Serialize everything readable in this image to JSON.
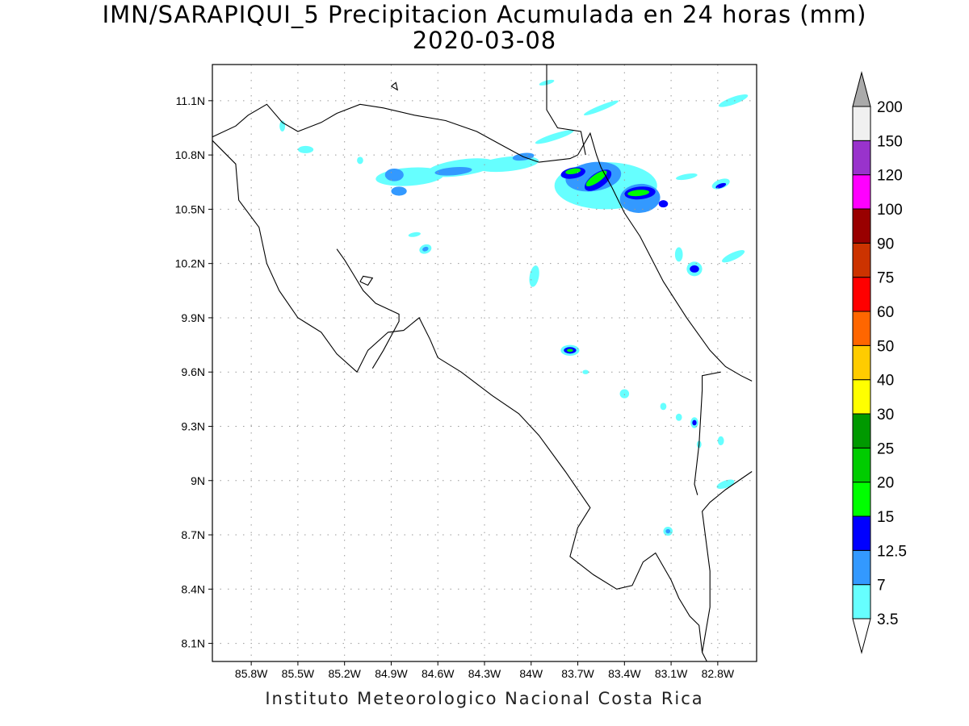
{
  "title": {
    "line1": "IMN/SARAPIQUI_5 Precipitacion Acumulada en 24 horas (mm)",
    "line2": "2020-03-08"
  },
  "footer": "Instituto Meteorologico Nacional Costa Rica",
  "map": {
    "lon_range": [
      -86.05,
      -82.55
    ],
    "lat_range": [
      8.0,
      11.3
    ],
    "grid": true,
    "lat_ticks": [
      {
        "value": 11.1,
        "label": "11.1N"
      },
      {
        "value": 10.8,
        "label": "10.8N"
      },
      {
        "value": 10.5,
        "label": "10.5N"
      },
      {
        "value": 10.2,
        "label": "10.2N"
      },
      {
        "value": 9.9,
        "label": "9.9N"
      },
      {
        "value": 9.6,
        "label": "9.6N"
      },
      {
        "value": 9.3,
        "label": "9.3N"
      },
      {
        "value": 9.0,
        "label": "9N"
      },
      {
        "value": 8.7,
        "label": "8.7N"
      },
      {
        "value": 8.4,
        "label": "8.4N"
      },
      {
        "value": 8.1,
        "label": "8.1N"
      }
    ],
    "lon_ticks": [
      {
        "value": -85.8,
        "label": "85.8W"
      },
      {
        "value": -85.5,
        "label": "85.5W"
      },
      {
        "value": -85.2,
        "label": "85.2W"
      },
      {
        "value": -84.9,
        "label": "84.9W"
      },
      {
        "value": -84.6,
        "label": "84.6W"
      },
      {
        "value": -84.3,
        "label": "84.3W"
      },
      {
        "value": -84.0,
        "label": "84W"
      },
      {
        "value": -83.7,
        "label": "83.7W"
      },
      {
        "value": -83.4,
        "label": "83.4W"
      },
      {
        "value": -83.1,
        "label": "83.1W"
      },
      {
        "value": -82.8,
        "label": "82.8W"
      }
    ]
  },
  "colorbar": {
    "orientation": "vertical",
    "labels": [
      "3.5",
      "7",
      "12.5",
      "15",
      "20",
      "25",
      "30",
      "40",
      "50",
      "60",
      "75",
      "90",
      "100",
      "120",
      "150",
      "200"
    ],
    "colors": [
      "#66ffff",
      "#3399ff",
      "#0000ff",
      "#00ff00",
      "#00cc00",
      "#009900",
      "#ffff00",
      "#ffcc00",
      "#ff6600",
      "#ff0000",
      "#cc3300",
      "#990000",
      "#ff00ff",
      "#9933cc",
      "#f0f0f0",
      "#aaaaaa"
    ]
  },
  "precip_features": [
    {
      "lon": -84.78,
      "lat": 10.68,
      "rlon": 0.22,
      "rlat": 0.05,
      "rot": -4,
      "level": 1
    },
    {
      "lon": -84.45,
      "lat": 10.73,
      "rlon": 0.22,
      "rlat": 0.045,
      "rot": -8,
      "level": 1
    },
    {
      "lon": -84.15,
      "lat": 10.75,
      "rlon": 0.2,
      "rlat": 0.04,
      "rot": -6,
      "level": 1
    },
    {
      "lon": -84.88,
      "lat": 10.69,
      "rlon": 0.06,
      "rlat": 0.035,
      "rot": 0,
      "level": 2
    },
    {
      "lon": -84.85,
      "lat": 10.6,
      "rlon": 0.05,
      "rlat": 0.025,
      "rot": 0,
      "level": 2
    },
    {
      "lon": -84.5,
      "lat": 10.71,
      "rlon": 0.12,
      "rlat": 0.022,
      "rot": -5,
      "level": 2
    },
    {
      "lon": -84.05,
      "lat": 10.79,
      "rlon": 0.07,
      "rlat": 0.02,
      "rot": -8,
      "level": 2
    },
    {
      "lon": -83.52,
      "lat": 10.63,
      "rlon": 0.33,
      "rlat": 0.13,
      "rot": 0,
      "level": 1
    },
    {
      "lon": -83.6,
      "lat": 10.68,
      "rlon": 0.18,
      "rlat": 0.08,
      "rot": -8,
      "level": 2
    },
    {
      "lon": -83.3,
      "lat": 10.56,
      "rlon": 0.13,
      "rlat": 0.08,
      "rot": -5,
      "level": 2
    },
    {
      "lon": -83.73,
      "lat": 10.7,
      "rlon": 0.08,
      "rlat": 0.03,
      "rot": -10,
      "level": 3
    },
    {
      "lon": -83.57,
      "lat": 10.66,
      "rlon": 0.1,
      "rlat": 0.04,
      "rot": -35,
      "level": 3
    },
    {
      "lon": -83.3,
      "lat": 10.59,
      "rlon": 0.1,
      "rlat": 0.035,
      "rot": -5,
      "level": 3
    },
    {
      "lon": -83.73,
      "lat": 10.71,
      "rlon": 0.05,
      "rlat": 0.015,
      "rot": -10,
      "level": 4
    },
    {
      "lon": -83.58,
      "lat": 10.67,
      "rlon": 0.08,
      "rlat": 0.022,
      "rot": -35,
      "level": 4
    },
    {
      "lon": -83.31,
      "lat": 10.59,
      "rlon": 0.07,
      "rlat": 0.017,
      "rot": -5,
      "level": 4
    },
    {
      "lon": -83.15,
      "lat": 10.53,
      "rlon": 0.03,
      "rlat": 0.02,
      "rot": 0,
      "level": 3
    },
    {
      "lon": -83.85,
      "lat": 10.9,
      "rlon": 0.13,
      "rlat": 0.018,
      "rot": -18,
      "level": 1
    },
    {
      "lon": -83.55,
      "lat": 11.06,
      "rlon": 0.12,
      "rlat": 0.015,
      "rot": -22,
      "level": 1
    },
    {
      "lon": -83.9,
      "lat": 11.2,
      "rlon": 0.05,
      "rlat": 0.012,
      "rot": -15,
      "level": 1
    },
    {
      "lon": -83.0,
      "lat": 10.68,
      "rlon": 0.07,
      "rlat": 0.015,
      "rot": -10,
      "level": 1
    },
    {
      "lon": -82.78,
      "lat": 10.64,
      "rlon": 0.06,
      "rlat": 0.025,
      "rot": -20,
      "level": 1
    },
    {
      "lon": -82.78,
      "lat": 10.63,
      "rlon": 0.035,
      "rlat": 0.012,
      "rot": -20,
      "level": 3
    },
    {
      "lon": -82.95,
      "lat": 10.17,
      "rlon": 0.05,
      "rlat": 0.04,
      "rot": 0,
      "level": 1
    },
    {
      "lon": -82.95,
      "lat": 10.17,
      "rlon": 0.03,
      "rlat": 0.02,
      "rot": 0,
      "level": 3
    },
    {
      "lon": -83.05,
      "lat": 10.25,
      "rlon": 0.025,
      "rlat": 0.04,
      "rot": 0,
      "level": 1
    },
    {
      "lon": -82.7,
      "lat": 10.24,
      "rlon": 0.08,
      "rlat": 0.02,
      "rot": -25,
      "level": 1
    },
    {
      "lon": -83.75,
      "lat": 9.72,
      "rlon": 0.06,
      "rlat": 0.03,
      "rot": 0,
      "level": 1
    },
    {
      "lon": -83.75,
      "lat": 9.72,
      "rlon": 0.04,
      "rlat": 0.018,
      "rot": 0,
      "level": 3
    },
    {
      "lon": -83.75,
      "lat": 9.72,
      "rlon": 0.02,
      "rlat": 0.008,
      "rot": 0,
      "level": 4
    },
    {
      "lon": -84.68,
      "lat": 10.28,
      "rlon": 0.04,
      "rlat": 0.025,
      "rot": -20,
      "level": 1
    },
    {
      "lon": -84.68,
      "lat": 10.28,
      "rlon": 0.02,
      "rlat": 0.012,
      "rot": -20,
      "level": 2
    },
    {
      "lon": -84.75,
      "lat": 10.36,
      "rlon": 0.04,
      "rlat": 0.012,
      "rot": -10,
      "level": 1
    },
    {
      "lon": -85.45,
      "lat": 10.83,
      "rlon": 0.05,
      "rlat": 0.02,
      "rot": 0,
      "level": 1
    },
    {
      "lon": -85.1,
      "lat": 10.77,
      "rlon": 0.02,
      "rlat": 0.02,
      "rot": 0,
      "level": 1
    },
    {
      "lon": -85.6,
      "lat": 10.96,
      "rlon": 0.018,
      "rlat": 0.03,
      "rot": 0,
      "level": 1
    },
    {
      "lon": -83.98,
      "lat": 10.13,
      "rlon": 0.03,
      "rlat": 0.06,
      "rot": 10,
      "level": 1
    },
    {
      "lon": -83.4,
      "lat": 9.48,
      "rlon": 0.03,
      "rlat": 0.025,
      "rot": 0,
      "level": 1
    },
    {
      "lon": -83.15,
      "lat": 9.41,
      "rlon": 0.02,
      "rlat": 0.02,
      "rot": 0,
      "level": 1
    },
    {
      "lon": -83.05,
      "lat": 9.35,
      "rlon": 0.02,
      "rlat": 0.02,
      "rot": 0,
      "level": 1
    },
    {
      "lon": -82.95,
      "lat": 9.32,
      "rlon": 0.025,
      "rlat": 0.03,
      "rot": 0,
      "level": 1
    },
    {
      "lon": -82.95,
      "lat": 9.32,
      "rlon": 0.014,
      "rlat": 0.015,
      "rot": 0,
      "level": 3
    },
    {
      "lon": -82.78,
      "lat": 9.22,
      "rlon": 0.02,
      "rlat": 0.025,
      "rot": 0,
      "level": 1
    },
    {
      "lon": -82.92,
      "lat": 9.2,
      "rlon": 0.015,
      "rlat": 0.02,
      "rot": 0,
      "level": 1
    },
    {
      "lon": -82.75,
      "lat": 8.98,
      "rlon": 0.06,
      "rlat": 0.02,
      "rot": -20,
      "level": 1
    },
    {
      "lon": -83.12,
      "lat": 8.72,
      "rlon": 0.03,
      "rlat": 0.025,
      "rot": 0,
      "level": 1
    },
    {
      "lon": -83.12,
      "lat": 8.72,
      "rlon": 0.015,
      "rlat": 0.012,
      "rot": 0,
      "level": 2
    },
    {
      "lon": -82.7,
      "lat": 11.1,
      "rlon": 0.1,
      "rlat": 0.02,
      "rot": -20,
      "level": 1
    },
    {
      "lon": -83.65,
      "lat": 9.6,
      "rlon": 0.02,
      "rlat": 0.012,
      "rot": 0,
      "level": 1
    }
  ],
  "coastlines": [
    [
      [
        -86.05,
        10.9
      ],
      [
        -85.9,
        10.96
      ],
      [
        -85.82,
        11.02
      ],
      [
        -85.7,
        11.08
      ],
      [
        -85.6,
        10.98
      ],
      [
        -85.5,
        10.93
      ],
      [
        -85.35,
        10.98
      ],
      [
        -85.25,
        11.03
      ],
      [
        -85.1,
        11.08
      ],
      [
        -84.95,
        11.06
      ],
      [
        -84.75,
        11.02
      ],
      [
        -84.55,
        10.99
      ],
      [
        -84.35,
        10.93
      ],
      [
        -84.18,
        10.85
      ],
      [
        -84.05,
        10.79
      ],
      [
        -83.95,
        10.76
      ],
      [
        -83.75,
        10.78
      ],
      [
        -83.7,
        10.8
      ],
      [
        -83.62,
        10.92
      ],
      [
        -83.58,
        10.8
      ],
      [
        -83.55,
        10.73
      ],
      [
        -83.48,
        10.62
      ],
      [
        -83.4,
        10.48
      ],
      [
        -83.3,
        10.35
      ],
      [
        -83.15,
        10.1
      ],
      [
        -83.0,
        9.9
      ],
      [
        -82.85,
        9.72
      ],
      [
        -82.75,
        9.63
      ],
      [
        -82.65,
        9.58
      ],
      [
        -82.58,
        9.55
      ]
    ],
    [
      [
        -82.58,
        9.05
      ],
      [
        -82.75,
        8.95
      ],
      [
        -82.85,
        8.88
      ],
      [
        -82.9,
        8.83
      ],
      [
        -82.85,
        8.5
      ],
      [
        -82.85,
        8.3
      ],
      [
        -82.9,
        8.05
      ],
      [
        -82.87,
        8.0
      ]
    ],
    [
      [
        -86.05,
        10.88
      ],
      [
        -85.9,
        10.75
      ],
      [
        -85.88,
        10.55
      ],
      [
        -85.75,
        10.4
      ],
      [
        -85.7,
        10.2
      ],
      [
        -85.62,
        10.05
      ],
      [
        -85.5,
        9.9
      ],
      [
        -85.35,
        9.82
      ],
      [
        -85.25,
        9.7
      ],
      [
        -85.12,
        9.6
      ],
      [
        -85.05,
        9.72
      ],
      [
        -84.92,
        9.82
      ],
      [
        -84.82,
        9.83
      ],
      [
        -84.72,
        9.9
      ],
      [
        -84.65,
        9.78
      ],
      [
        -84.6,
        9.68
      ],
      [
        -84.45,
        9.6
      ],
      [
        -84.25,
        9.47
      ],
      [
        -84.08,
        9.37
      ],
      [
        -83.95,
        9.25
      ],
      [
        -83.78,
        9.05
      ],
      [
        -83.62,
        8.85
      ],
      [
        -83.7,
        8.74
      ],
      [
        -83.75,
        8.58
      ],
      [
        -83.6,
        8.48
      ],
      [
        -83.45,
        8.4
      ],
      [
        -83.35,
        8.42
      ],
      [
        -83.28,
        8.55
      ],
      [
        -83.2,
        8.6
      ],
      [
        -83.1,
        8.45
      ],
      [
        -83.05,
        8.35
      ],
      [
        -82.98,
        8.25
      ],
      [
        -82.92,
        8.2
      ],
      [
        -82.9,
        8.05
      ]
    ],
    [
      [
        -85.25,
        10.28
      ],
      [
        -85.2,
        10.22
      ],
      [
        -85.15,
        10.15
      ],
      [
        -85.08,
        10.05
      ],
      [
        -85.0,
        9.98
      ],
      [
        -84.85,
        9.92
      ],
      [
        -84.85,
        9.88
      ],
      [
        -84.95,
        9.72
      ],
      [
        -85.02,
        9.62
      ]
    ],
    [
      [
        -85.1,
        10.1
      ],
      [
        -85.05,
        10.08
      ],
      [
        -85.02,
        10.12
      ],
      [
        -85.08,
        10.13
      ],
      [
        -85.1,
        10.1
      ]
    ],
    [
      [
        -84.9,
        11.18
      ],
      [
        -84.87,
        11.2
      ],
      [
        -84.86,
        11.16
      ],
      [
        -84.9,
        11.18
      ]
    ]
  ],
  "borders": [
    [
      [
        -83.9,
        11.3
      ],
      [
        -83.9,
        11.05
      ],
      [
        -83.83,
        10.95
      ],
      [
        -83.68,
        10.93
      ],
      [
        -83.65,
        10.8
      ]
    ],
    [
      [
        -82.78,
        9.6
      ],
      [
        -82.9,
        9.58
      ],
      [
        -82.9,
        9.5
      ],
      [
        -82.92,
        9.2
      ],
      [
        -82.95,
        8.98
      ],
      [
        -82.93,
        8.92
      ]
    ]
  ]
}
